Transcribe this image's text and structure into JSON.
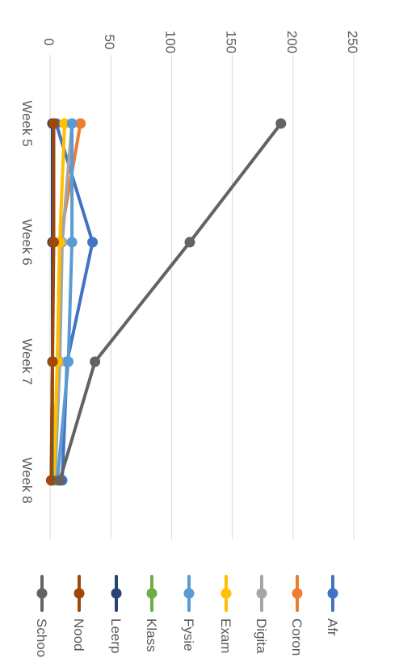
{
  "chart_data": {
    "type": "line",
    "title": "",
    "xlabel": "",
    "ylabel": "",
    "categories": [
      "Week 5",
      "Week 6",
      "Week 7",
      "Week 8"
    ],
    "ylim": [
      0,
      250
    ],
    "yticks": [
      0,
      50,
      100,
      150,
      200,
      250
    ],
    "grid": true,
    "legend_position": "bottom",
    "orientation": "rotated-90-clockwise",
    "series": [
      {
        "name": "Afr",
        "color": "#4472C4",
        "values": [
          5,
          35,
          14,
          10
        ]
      },
      {
        "name": "Coron",
        "color": "#ED7D31",
        "values": [
          25,
          8,
          6,
          3
        ]
      },
      {
        "name": "Digita",
        "color": "#A5A5A5",
        "values": [
          18,
          10,
          8,
          4
        ]
      },
      {
        "name": "Exam",
        "color": "#FFC000",
        "values": [
          12,
          8,
          6,
          3
        ]
      },
      {
        "name": "Fysie",
        "color": "#5B9BD5",
        "values": [
          18,
          18,
          15,
          6
        ]
      },
      {
        "name": "Klass",
        "color": "#70AD47",
        "values": [
          2,
          2,
          2,
          2
        ]
      },
      {
        "name": "Leerp",
        "color": "#264478",
        "values": [
          2,
          2,
          2,
          1
        ]
      },
      {
        "name": "Nood",
        "color": "#9E480E",
        "values": [
          3,
          3,
          2,
          1
        ]
      },
      {
        "name": "Schoo",
        "color": "#636363",
        "values": [
          190,
          115,
          37,
          8
        ]
      }
    ]
  }
}
